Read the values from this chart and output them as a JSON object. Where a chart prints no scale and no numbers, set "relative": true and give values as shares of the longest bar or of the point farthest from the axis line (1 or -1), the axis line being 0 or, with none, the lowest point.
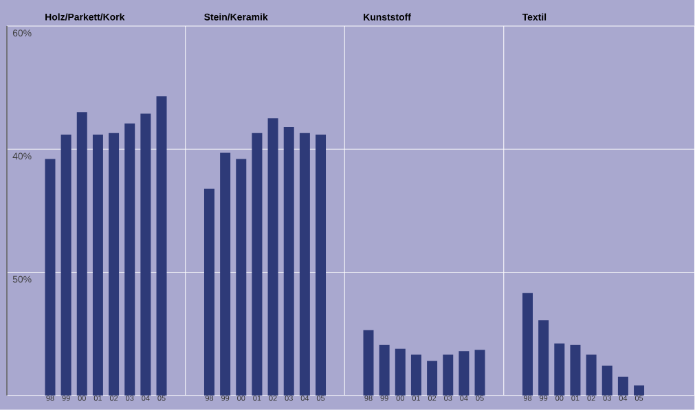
{
  "chart_data": {
    "type": "bar",
    "relative": true,
    "categories": [
      "98",
      "99",
      "00",
      "01",
      "02",
      "03",
      "04",
      "05",
      null,
      null,
      "98",
      "99",
      "00",
      "01",
      "02",
      "03",
      "04",
      "05",
      null,
      null,
      "98",
      "99",
      "00",
      "01",
      "02",
      "03",
      "04",
      "05",
      null,
      null,
      "98",
      "99",
      "00",
      "01",
      "02",
      "03",
      "04",
      "05"
    ],
    "series": [
      {
        "color": "#2e3a78",
        "values": [
          0.79,
          0.872,
          0.947,
          0.872,
          0.877,
          0.909,
          0.942,
          1,
          null,
          null,
          null,
          null,
          null,
          null,
          null,
          null,
          null,
          null,
          null,
          null,
          null,
          null,
          null,
          null,
          null,
          null,
          null,
          null,
          null,
          null,
          null,
          null,
          null,
          null,
          null,
          null,
          null,
          null
        ]
      },
      {
        "color": "#2e3a78",
        "values": [
          null,
          null,
          null,
          null,
          null,
          null,
          null,
          null,
          null,
          null,
          0.691,
          0.811,
          0.79,
          0.877,
          0.926,
          0.897,
          0.877,
          0.872,
          null,
          null,
          null,
          null,
          null,
          null,
          null,
          null,
          null,
          null,
          null,
          null,
          null,
          null,
          null,
          null,
          null,
          null,
          null,
          null
        ]
      },
      {
        "color": "#2e3a78",
        "values": [
          null,
          null,
          null,
          null,
          null,
          null,
          null,
          null,
          null,
          null,
          null,
          null,
          null,
          null,
          null,
          null,
          null,
          null,
          null,
          null,
          0.218,
          0.169,
          0.156,
          0.136,
          0.115,
          0.136,
          0.148,
          0.152,
          null,
          null,
          null,
          null,
          null,
          null,
          null,
          null,
          null,
          null
        ]
      },
      {
        "color": "#2e3a78",
        "values": [
          null,
          null,
          null,
          null,
          null,
          null,
          null,
          null,
          null,
          null,
          null,
          null,
          null,
          null,
          null,
          null,
          null,
          null,
          null,
          null,
          null,
          null,
          null,
          null,
          null,
          null,
          null,
          null,
          null,
          null,
          0.342,
          0.251,
          0.173,
          0.169,
          0.136,
          0.099,
          0.062,
          0.033
        ]
      }
    ],
    "ref_lines": [
      {
        "axis": "y",
        "value": 0.4115,
        "color": "#ffffff"
      },
      {
        "axis": "y",
        "value": 0.823,
        "color": "#ffffff"
      }
    ],
    "annotations": [
      "50%",
      "40%",
      "60%",
      "Holz/Parkett/Kork",
      "Stein/Keramik",
      "Kunststoff",
      "Textil"
    ]
  }
}
